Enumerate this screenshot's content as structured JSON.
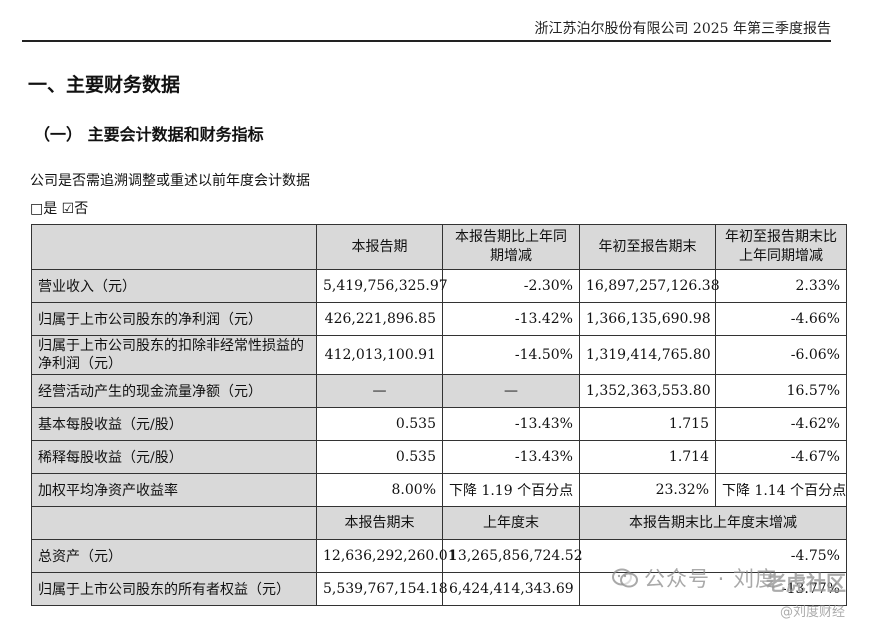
{
  "header": {
    "title": "浙江苏泊尔股份有限公司 2025 年第三季度报告"
  },
  "section": {
    "title": "一、主要财务数据",
    "subtitle": "（一） 主要会计数据和财务指标",
    "question": "公司是否需追溯调整或重述以前年度会计数据",
    "options": "□是 ☑否"
  },
  "table": {
    "headers": [
      "",
      "本报告期",
      "本报告期比上年同期增减",
      "年初至报告期末",
      "年初至报告期末比上年同期增减"
    ],
    "rows": [
      [
        "营业收入（元）",
        "5,419,756,325.97",
        "-2.30%",
        "16,897,257,126.38",
        "2.33%"
      ],
      [
        "归属于上市公司股东的净利润（元）",
        "426,221,896.85",
        "-13.42%",
        "1,366,135,690.98",
        "-4.66%"
      ],
      [
        "归属于上市公司股东的扣除非经常性损益的净利润（元）",
        "412,013,100.91",
        "-14.50%",
        "1,319,414,765.80",
        "-6.06%"
      ],
      [
        "经营活动产生的现金流量净额（元）",
        "—",
        "—",
        "1,352,363,553.80",
        "16.57%"
      ],
      [
        "基本每股收益（元/股）",
        "0.535",
        "-13.43%",
        "1.715",
        "-4.62%"
      ],
      [
        "稀释每股收益（元/股）",
        "0.535",
        "-13.43%",
        "1.714",
        "-4.67%"
      ],
      [
        "加权平均净资产收益率",
        "8.00%",
        "下降 1.19 个百分点",
        "23.32%",
        "下降 1.14 个百分点"
      ]
    ],
    "headers2": [
      "",
      "本报告期末",
      "上年度末",
      "本报告期末比上年度末增减"
    ],
    "rows2": [
      [
        "总资产（元）",
        "12,636,292,260.01",
        "13,265,856,724.52",
        "-4.75%"
      ],
      [
        "归属于上市公司股东的所有者权益（元）",
        "5,539,767,154.18",
        "6,424,414,343.69",
        "-13.77%"
      ]
    ]
  },
  "watermark": {
    "channel": "公众号 · 刘度",
    "stamp_top": "老虎社区",
    "stamp_bottom": "@刘度财经"
  }
}
